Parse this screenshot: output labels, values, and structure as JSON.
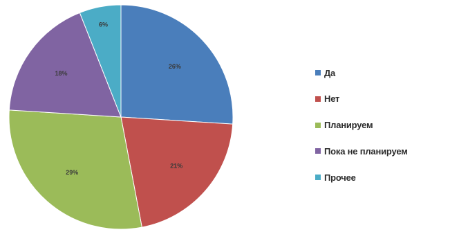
{
  "chart_data": {
    "type": "pie",
    "slices": [
      {
        "name": "Да",
        "value": 26,
        "label": "26%",
        "color": "#4a7ebb"
      },
      {
        "name": "Нет",
        "value": 21,
        "label": "21%",
        "color": "#c0504d"
      },
      {
        "name": "Планируем",
        "value": 29,
        "label": "29%",
        "color": "#9bbb59"
      },
      {
        "name": "Пока не планируем",
        "value": 18,
        "label": "18%",
        "color": "#8064a2"
      },
      {
        "name": "Прочее",
        "value": 6,
        "label": "6%",
        "color": "#4bacc6"
      }
    ],
    "legend_position": "right",
    "start": "top",
    "direction": "clockwise"
  }
}
